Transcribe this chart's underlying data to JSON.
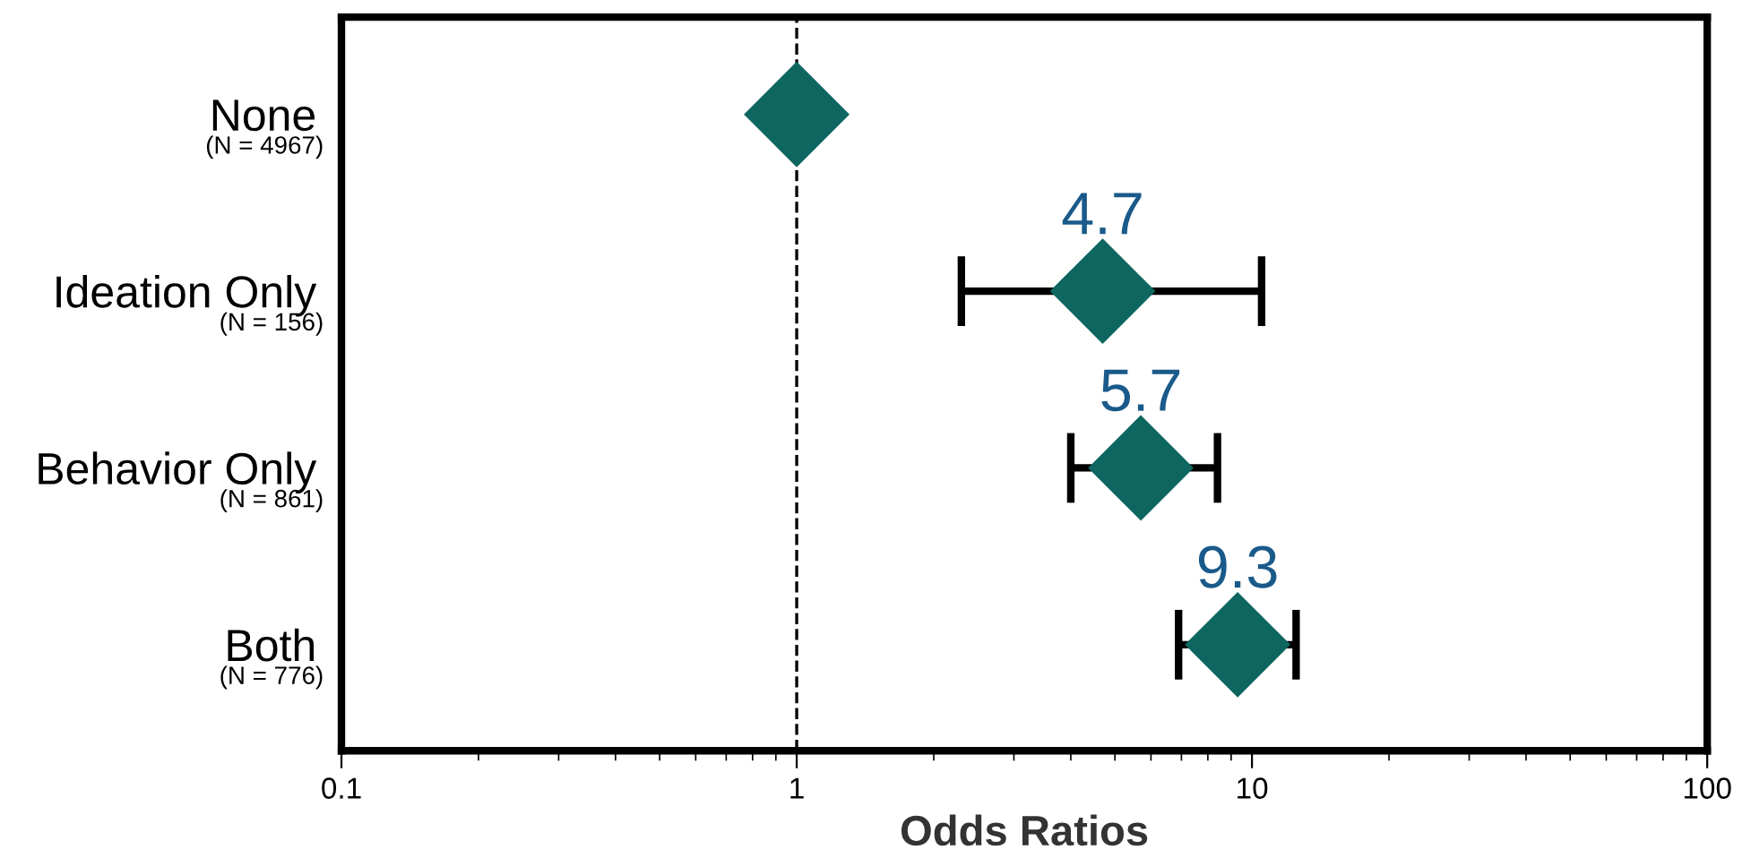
{
  "chart_data": {
    "type": "scatter",
    "xlabel": "Odds Ratios",
    "categories": [
      "None",
      "Ideation Only",
      "Behavior Only",
      "Both"
    ],
    "annotations": [
      "(N = 4967)",
      "(N = 156)",
      "(N = 861)",
      "(N = 776)"
    ],
    "values": [
      1,
      4.7,
      5.7,
      9.3
    ],
    "errors": [
      null,
      [
        2.3,
        10.5
      ],
      [
        4.0,
        8.4
      ],
      [
        6.9,
        12.5
      ]
    ],
    "value_labels": [
      null,
      "4.7",
      "5.7",
      "9.3"
    ],
    "orientation": "horizontal",
    "color": "#0e6660",
    "marker": "diamond",
    "log": "x",
    "xlim": [
      0.1,
      100
    ],
    "xticks": [
      0.1,
      1,
      10,
      100
    ],
    "ref_lines": [
      {
        "axis": "x",
        "value": 1,
        "line_style": "dashed",
        "color": "#000000"
      }
    ],
    "grid": false,
    "legend": false
  }
}
